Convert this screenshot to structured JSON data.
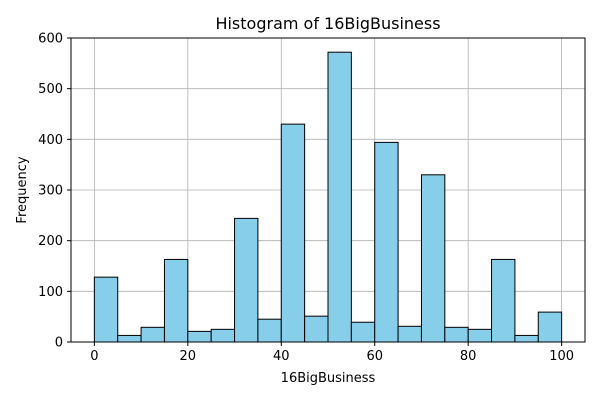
{
  "chart_data": {
    "type": "bar",
    "title": "Histogram of 16BigBusiness",
    "xlabel": "16BigBusiness",
    "ylabel": "Frequency",
    "xlim": [
      -5,
      105
    ],
    "ylim": [
      0,
      600
    ],
    "x_ticks": [
      0,
      20,
      40,
      60,
      80,
      100
    ],
    "y_ticks": [
      0,
      100,
      200,
      300,
      400,
      500,
      600
    ],
    "grid": true,
    "bar_color": "#87ceeb",
    "edge_color": "#000000",
    "bins": [
      {
        "start": 0,
        "end": 5,
        "value": 128
      },
      {
        "start": 5,
        "end": 10,
        "value": 13
      },
      {
        "start": 10,
        "end": 15,
        "value": 29
      },
      {
        "start": 15,
        "end": 20,
        "value": 163
      },
      {
        "start": 20,
        "end": 25,
        "value": 21
      },
      {
        "start": 25,
        "end": 30,
        "value": 25
      },
      {
        "start": 30,
        "end": 35,
        "value": 244
      },
      {
        "start": 35,
        "end": 40,
        "value": 45
      },
      {
        "start": 40,
        "end": 45,
        "value": 430
      },
      {
        "start": 45,
        "end": 50,
        "value": 51
      },
      {
        "start": 50,
        "end": 55,
        "value": 572
      },
      {
        "start": 55,
        "end": 60,
        "value": 39
      },
      {
        "start": 60,
        "end": 65,
        "value": 394
      },
      {
        "start": 65,
        "end": 70,
        "value": 31
      },
      {
        "start": 70,
        "end": 75,
        "value": 330
      },
      {
        "start": 75,
        "end": 80,
        "value": 29
      },
      {
        "start": 80,
        "end": 85,
        "value": 25
      },
      {
        "start": 85,
        "end": 90,
        "value": 163
      },
      {
        "start": 90,
        "end": 95,
        "value": 13
      },
      {
        "start": 95,
        "end": 100,
        "value": 59
      }
    ]
  }
}
